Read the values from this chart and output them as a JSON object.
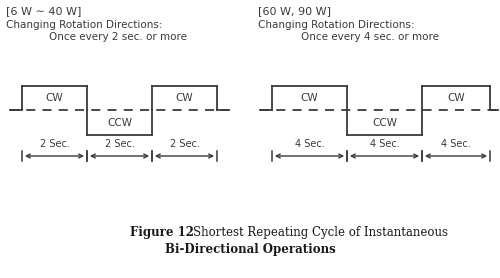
{
  "bg_color": "#ffffff",
  "text_color": "#3a3a3a",
  "line_color": "#3a3a3a",
  "left_panel": {
    "title": "[6 W ∼ 40 W]",
    "subtitle": "Changing Rotation Directions:",
    "freq": "Once every 2 sec. or more",
    "sec_label": "2 Sec.",
    "cw_label": "CW",
    "ccw_label": "CCW"
  },
  "right_panel": {
    "title": "[60 W, 90 W]",
    "subtitle": "Changing Rotation Directions:",
    "freq": "Once every 4 sec. or more",
    "sec_label": "4 Sec.",
    "cw_label": "CW",
    "ccw_label": "CCW"
  },
  "figure_num": "Figure 12",
  "figure_text_line1": "    Shortest Repeating Cycle of Instantaneous",
  "figure_text_line2": "Bi-Directional Operations"
}
